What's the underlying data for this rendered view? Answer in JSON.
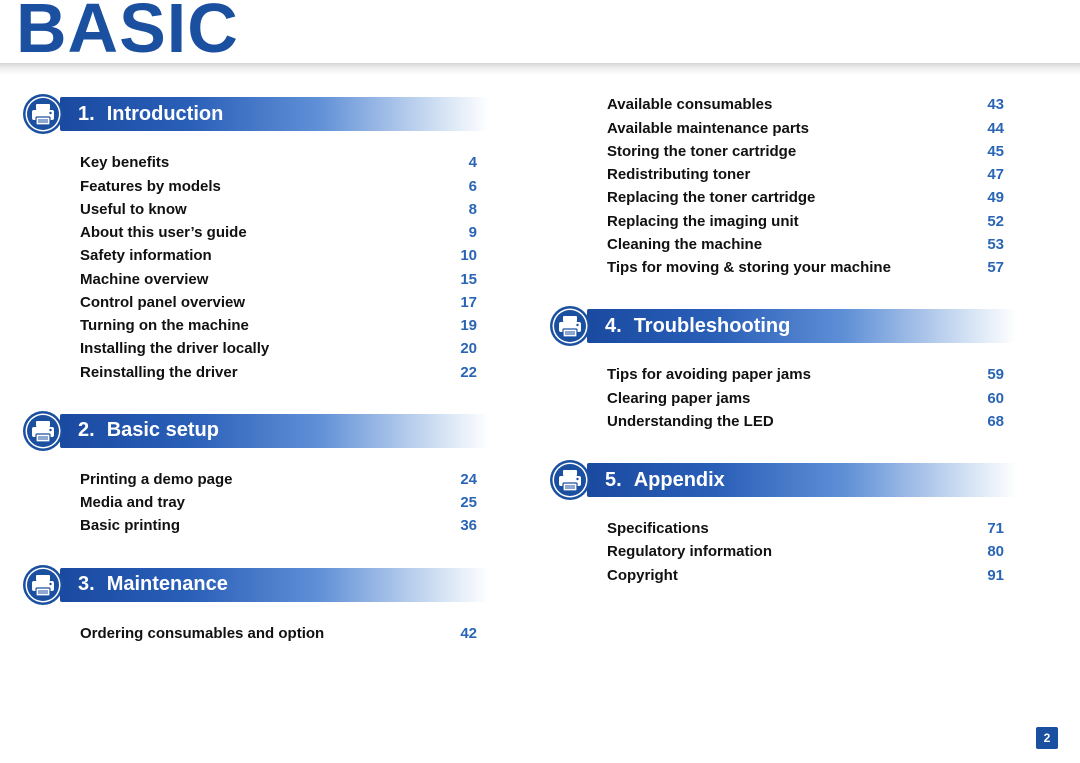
{
  "title": "BASIC",
  "page_number": "2",
  "colors": {
    "brand": "#1b4fa0",
    "link_page": "#2a65b5",
    "gradient_start": "#1a4aa0",
    "gradient_end": "#ffffff"
  },
  "col_left": {
    "sections": [
      {
        "num": "1.",
        "label": "Introduction",
        "items": [
          {
            "lbl": "Key benefits",
            "pg": "4"
          },
          {
            "lbl": "Features by models",
            "pg": "6"
          },
          {
            "lbl": "Useful to know",
            "pg": "8"
          },
          {
            "lbl": "About this user’s guide",
            "pg": "9"
          },
          {
            "lbl": "Safety information",
            "pg": "10"
          },
          {
            "lbl": "Machine overview",
            "pg": "15"
          },
          {
            "lbl": "Control panel overview",
            "pg": "17"
          },
          {
            "lbl": "Turning on the machine",
            "pg": "19"
          },
          {
            "lbl": "Installing the driver locally",
            "pg": "20"
          },
          {
            "lbl": "Reinstalling the driver",
            "pg": "22"
          }
        ]
      },
      {
        "num": "2.",
        "label": "Basic setup",
        "items": [
          {
            "lbl": "Printing a demo page",
            "pg": "24"
          },
          {
            "lbl": "Media and tray",
            "pg": "25"
          },
          {
            "lbl": "Basic printing",
            "pg": "36"
          }
        ]
      },
      {
        "num": "3.",
        "label": "Maintenance",
        "items": [
          {
            "lbl": "Ordering consumables and option",
            "pg": "42"
          }
        ]
      }
    ]
  },
  "col_right": {
    "orphan_items": [
      {
        "lbl": "Available consumables",
        "pg": "43"
      },
      {
        "lbl": "Available maintenance parts",
        "pg": "44"
      },
      {
        "lbl": "Storing the toner cartridge",
        "pg": "45"
      },
      {
        "lbl": "Redistributing toner",
        "pg": "47"
      },
      {
        "lbl": "Replacing the toner cartridge",
        "pg": "49"
      },
      {
        "lbl": "Replacing the imaging unit",
        "pg": "52"
      },
      {
        "lbl": "Cleaning the machine",
        "pg": "53"
      },
      {
        "lbl": "Tips for moving & storing your machine",
        "pg": "57"
      }
    ],
    "sections": [
      {
        "num": "4.",
        "label": "Troubleshooting",
        "items": [
          {
            "lbl": "Tips for avoiding paper jams",
            "pg": "59"
          },
          {
            "lbl": "Clearing paper jams",
            "pg": "60"
          },
          {
            "lbl": "Understanding the LED",
            "pg": "68"
          }
        ]
      },
      {
        "num": "5.",
        "label": "Appendix",
        "items": [
          {
            "lbl": "Specifications",
            "pg": "71"
          },
          {
            "lbl": "Regulatory information",
            "pg": "80"
          },
          {
            "lbl": "Copyright",
            "pg": "91"
          }
        ]
      }
    ]
  }
}
